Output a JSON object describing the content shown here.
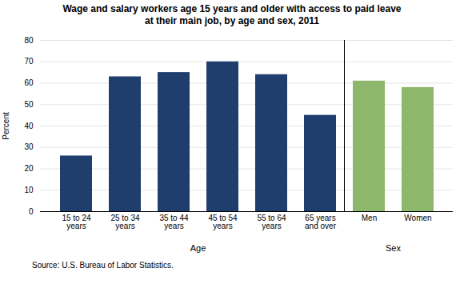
{
  "chart_data": {
    "type": "bar",
    "title": "Wage and salary workers age 15 years and older with access to paid leave\nat their main job, by age and sex, 2011",
    "categories": [
      "15 to 24\nyears",
      "25 to 34\nyears",
      "35 to 44\nyears",
      "45 to 54\nyears",
      "55 to 64\nyears",
      "65 years\nand over",
      "Men",
      "Women"
    ],
    "values": [
      26,
      63,
      65,
      70,
      64,
      45,
      61,
      58
    ],
    "colors": [
      "#1F3E6E",
      "#1F3E6E",
      "#1F3E6E",
      "#1F3E6E",
      "#1F3E6E",
      "#1F3E6E",
      "#8DB76B",
      "#8DB76B"
    ],
    "ylabel": "Percent",
    "ylim": [
      0,
      80
    ],
    "yticks": [
      0,
      10,
      20,
      30,
      40,
      50,
      60,
      70,
      80
    ],
    "grid": true,
    "group_labels": [
      "Age",
      "Sex"
    ],
    "source": "Source: U.S. Bureau of Labor Statistics."
  }
}
